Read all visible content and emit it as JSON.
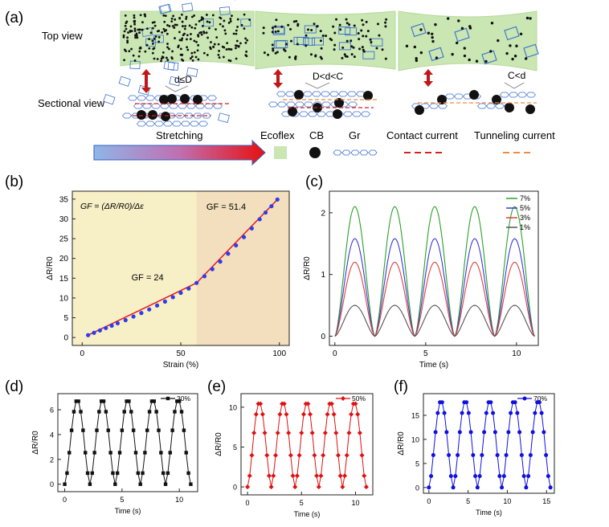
{
  "panel_a": {
    "label": "(a)",
    "top_view": "Top view",
    "sectional_view": "Sectional view",
    "cond1": "d≤D",
    "cond2": "D<d<C",
    "cond3": "C<d",
    "stretching": "Stretching",
    "legend": {
      "ecoflex": "Ecoflex",
      "cb": "CB",
      "gr": "Gr",
      "contact": "Contact current",
      "tunneling": "Tunneling current"
    },
    "colors": {
      "ecoflex": "#c9e6b3",
      "graphene": "#3a6fd0",
      "cb": "#111111",
      "contact": "#d81e1e",
      "tunneling": "#f08a3c"
    }
  },
  "chart_data": [
    {
      "id": "b",
      "label": "(b)",
      "type": "scatter",
      "xlabel": "Strain (%)",
      "ylabel": "ΔR/R0",
      "xlim": [
        -5,
        105
      ],
      "ylim": [
        -2,
        37
      ],
      "xticks": [
        0,
        50,
        100
      ],
      "yticks": [
        0,
        5,
        10,
        15,
        20,
        25,
        30,
        35
      ],
      "formula": "GF = (ΔR/R0)/Δε",
      "annotations": [
        "GF = 24",
        "GF = 51.4"
      ],
      "region_boundary": 58,
      "region_colors": [
        "#f7efc6",
        "#f3dfbe"
      ],
      "fit_lines": [
        {
          "x": [
            3,
            58
          ],
          "y": [
            0.6,
            13.8
          ]
        },
        {
          "x": [
            58,
            99
          ],
          "y": [
            13.8,
            34.9
          ]
        }
      ],
      "points": {
        "color": "#2b3cf2",
        "x": [
          3,
          6,
          9,
          12,
          15,
          18,
          22,
          26,
          30,
          34,
          38,
          42,
          46,
          50,
          54,
          58,
          62,
          66,
          70,
          74,
          78,
          82,
          86,
          90,
          93,
          96,
          99
        ],
        "y": [
          0.6,
          1.2,
          1.8,
          2.4,
          3.0,
          3.6,
          4.4,
          5.3,
          6.2,
          7.1,
          8.1,
          9.1,
          10.2,
          11.3,
          12.4,
          13.8,
          15.5,
          17.3,
          19.2,
          21.2,
          23.3,
          25.4,
          27.6,
          29.9,
          31.6,
          33.2,
          34.9
        ]
      }
    },
    {
      "id": "c",
      "label": "(c)",
      "type": "line",
      "xlabel": "Time (s)",
      "ylabel": "ΔR/R0",
      "xlim": [
        -0.3,
        11.2
      ],
      "ylim": [
        -0.15,
        2.35
      ],
      "xticks": [
        0,
        5,
        10
      ],
      "yticks": [
        0,
        1,
        2
      ],
      "period": 2.2,
      "cycles": 5,
      "series": [
        {
          "name": "7%",
          "color": "#2ca02c",
          "peak": 2.1
        },
        {
          "name": "5%",
          "color": "#3b3bd6",
          "peak": 1.58
        },
        {
          "name": "3%",
          "color": "#e04040",
          "peak": 1.2
        },
        {
          "name": "1%",
          "color": "#555555",
          "peak": 0.5
        }
      ]
    },
    {
      "id": "d",
      "label": "(d)",
      "type": "line",
      "xlabel": "Time (s)",
      "ylabel": "ΔR/R0",
      "xlim": [
        -0.6,
        11.6
      ],
      "ylim": [
        -0.6,
        7.3
      ],
      "xticks": [
        0,
        5,
        10
      ],
      "yticks": [
        0,
        2,
        4,
        6
      ],
      "period": 2.2,
      "cycles": 5,
      "series": [
        {
          "name": "30%",
          "color": "#111111",
          "peak": 6.8,
          "marker": "square"
        }
      ]
    },
    {
      "id": "e",
      "label": "(e)",
      "type": "line",
      "xlabel": "Time (s)",
      "ylabel": "ΔR/R0",
      "xlim": [
        -0.6,
        11.6
      ],
      "ylim": [
        -1,
        11.7
      ],
      "xticks": [
        0,
        5,
        10
      ],
      "yticks": [
        0,
        5,
        10
      ],
      "period": 2.2,
      "cycles": 5,
      "series": [
        {
          "name": "50%",
          "color": "#e01010",
          "peak": 10.6,
          "marker": "diamond"
        }
      ]
    },
    {
      "id": "f",
      "label": "(f)",
      "type": "line",
      "xlabel": "Time (s)",
      "ylabel": "ΔR/R0",
      "xlim": [
        -0.7,
        16
      ],
      "ylim": [
        -1.2,
        19.5
      ],
      "xticks": [
        0,
        5,
        10,
        15
      ],
      "yticks": [
        0,
        5,
        10,
        15
      ],
      "period": 3.1,
      "cycles": 5,
      "series": [
        {
          "name": "70%",
          "color": "#1010e0",
          "peak": 18,
          "marker": "circle"
        }
      ]
    }
  ]
}
